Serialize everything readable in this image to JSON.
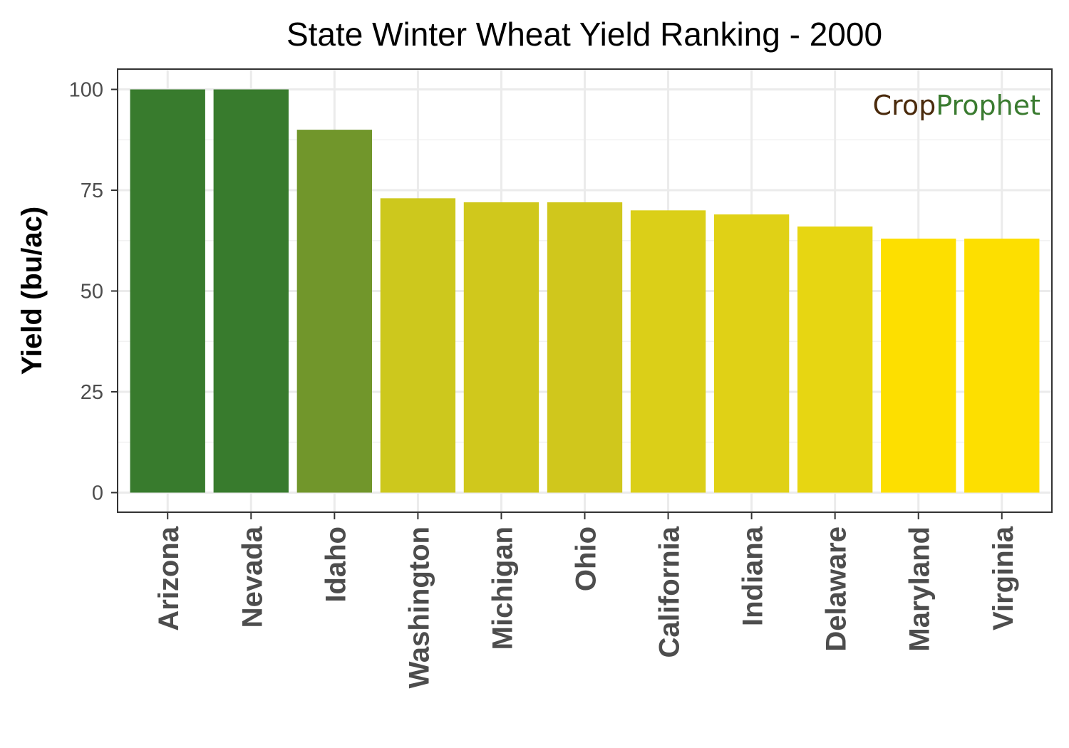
{
  "chart_data": {
    "type": "bar",
    "title": "State Winter Wheat Yield Ranking - 2000",
    "xlabel": "",
    "ylabel": "Yield (bu/ac)",
    "categories": [
      "Arizona",
      "Nevada",
      "Idaho",
      "Washington",
      "Michigan",
      "Ohio",
      "California",
      "Indiana",
      "Delaware",
      "Maryland",
      "Virginia"
    ],
    "values": [
      100,
      100,
      90,
      73,
      72,
      72,
      70,
      69,
      66,
      63,
      63
    ],
    "bar_colors": [
      "#387b2d",
      "#387b2d",
      "#71962b",
      "#cdc81d",
      "#d0c81c",
      "#d0c71c",
      "#dbcf18",
      "#e0d116",
      "#e7d612",
      "#fddf00",
      "#fddf00"
    ],
    "ylim": [
      0,
      100
    ],
    "yticks": [
      0,
      25,
      50,
      75,
      100
    ],
    "grid": true,
    "legend": "none"
  },
  "logo": {
    "part1": "Crop",
    "part2": "Prophet",
    "color1": "#4a2a0c",
    "color2": "#3a7b30"
  }
}
